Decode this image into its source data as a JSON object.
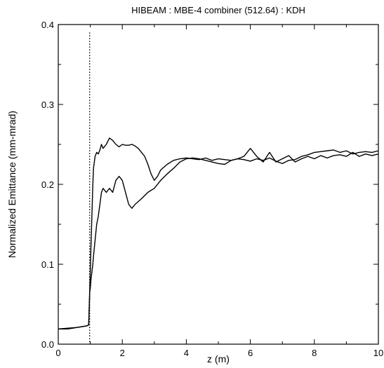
{
  "chart_data": {
    "type": "line",
    "title": "HIBEAM : MBE-4 combiner (512.64) : KDH",
    "xlabel": "z (m)",
    "ylabel": "Normalized Emittance (mm-mrad)",
    "xlim": [
      0,
      10
    ],
    "ylim": [
      0,
      0.4
    ],
    "xticks": [
      0,
      2,
      4,
      6,
      8,
      10
    ],
    "yticks": [
      0.0,
      0.1,
      0.2,
      0.3,
      0.4
    ],
    "xtick_labels": [
      "0",
      "2",
      "4",
      "6",
      "8",
      "10"
    ],
    "ytick_labels": [
      "0.0",
      "0.1",
      "0.2",
      "0.3",
      "0.4"
    ],
    "grid": false,
    "legend": "none",
    "vertical_marker": {
      "x": 0.98,
      "y_top": 0.39,
      "style": "dotted"
    },
    "series": [
      {
        "x": [
          0,
          0.3,
          0.6,
          0.9,
          0.95,
          0.98,
          1.0,
          1.02,
          1.05,
          1.08,
          1.1,
          1.15,
          1.2,
          1.25,
          1.3,
          1.35,
          1.4,
          1.5,
          1.6,
          1.7,
          1.8,
          1.9,
          2.0,
          2.1,
          2.2,
          2.3,
          2.4,
          2.5,
          2.6,
          2.7,
          2.8,
          2.9,
          3.0,
          3.1,
          3.2,
          3.4,
          3.6,
          3.8,
          4.0,
          4.2,
          4.4,
          4.6,
          4.8,
          5.0,
          5.2,
          5.4,
          5.6,
          5.8,
          6.0,
          6.2,
          6.4,
          6.6,
          6.8,
          7.0,
          7.2,
          7.4,
          7.6,
          7.8,
          8.0,
          8.2,
          8.4,
          8.6,
          8.8,
          9.0,
          9.2,
          9.4,
          9.6,
          9.8,
          10.0
        ],
        "y": [
          0.019,
          0.019,
          0.021,
          0.023,
          0.024,
          0.06,
          0.09,
          0.12,
          0.16,
          0.2,
          0.22,
          0.235,
          0.24,
          0.238,
          0.243,
          0.25,
          0.245,
          0.25,
          0.258,
          0.255,
          0.25,
          0.247,
          0.25,
          0.249,
          0.249,
          0.25,
          0.248,
          0.245,
          0.24,
          0.235,
          0.225,
          0.213,
          0.205,
          0.21,
          0.218,
          0.225,
          0.23,
          0.232,
          0.233,
          0.232,
          0.231,
          0.233,
          0.23,
          0.232,
          0.231,
          0.23,
          0.232,
          0.231,
          0.229,
          0.232,
          0.23,
          0.233,
          0.229,
          0.226,
          0.23,
          0.231,
          0.235,
          0.237,
          0.24,
          0.241,
          0.242,
          0.243,
          0.24,
          0.242,
          0.238,
          0.24,
          0.241,
          0.24,
          0.242
        ]
      },
      {
        "x": [
          0,
          0.3,
          0.6,
          0.9,
          0.95,
          0.98,
          1.0,
          1.02,
          1.05,
          1.08,
          1.1,
          1.15,
          1.2,
          1.25,
          1.3,
          1.35,
          1.4,
          1.5,
          1.6,
          1.7,
          1.8,
          1.9,
          2.0,
          2.1,
          2.2,
          2.3,
          2.4,
          2.6,
          2.8,
          3.0,
          3.2,
          3.4,
          3.6,
          3.8,
          4.0,
          4.2,
          4.4,
          4.6,
          4.8,
          5.0,
          5.2,
          5.4,
          5.6,
          5.8,
          6.0,
          6.2,
          6.4,
          6.6,
          6.8,
          7.0,
          7.2,
          7.4,
          7.6,
          7.8,
          8.0,
          8.2,
          8.4,
          8.6,
          8.8,
          9.0,
          9.2,
          9.4,
          9.6,
          9.8,
          10.0
        ],
        "y": [
          0.019,
          0.02,
          0.021,
          0.023,
          0.024,
          0.065,
          0.07,
          0.08,
          0.09,
          0.1,
          0.11,
          0.13,
          0.15,
          0.16,
          0.175,
          0.19,
          0.195,
          0.19,
          0.195,
          0.19,
          0.205,
          0.21,
          0.205,
          0.19,
          0.175,
          0.17,
          0.175,
          0.182,
          0.19,
          0.195,
          0.205,
          0.213,
          0.22,
          0.228,
          0.232,
          0.233,
          0.232,
          0.23,
          0.228,
          0.226,
          0.225,
          0.23,
          0.232,
          0.235,
          0.245,
          0.235,
          0.228,
          0.24,
          0.228,
          0.232,
          0.236,
          0.228,
          0.232,
          0.235,
          0.232,
          0.236,
          0.233,
          0.236,
          0.237,
          0.235,
          0.24,
          0.235,
          0.238,
          0.236,
          0.238
        ]
      }
    ]
  }
}
